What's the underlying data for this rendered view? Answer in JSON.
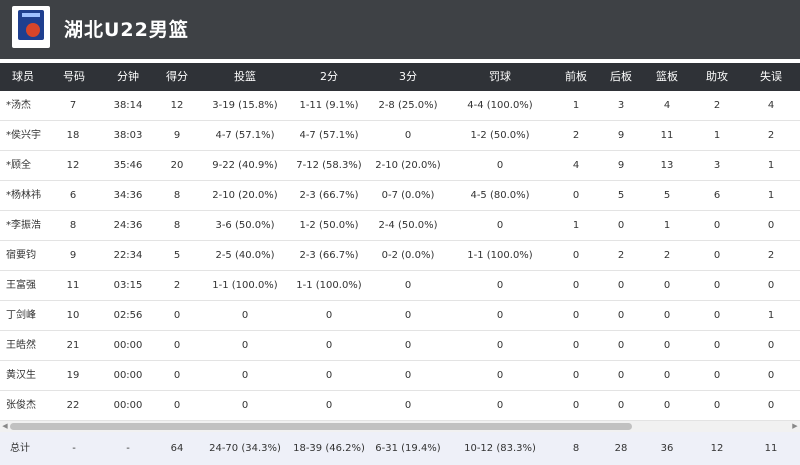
{
  "team": {
    "name": "湖北U22男篮",
    "logo_icon": "team-logo-icon"
  },
  "columns": [
    "球员",
    "号码",
    "分钟",
    "得分",
    "投篮",
    "2分",
    "3分",
    "罚球",
    "前板",
    "后板",
    "篮板",
    "助攻",
    "失误"
  ],
  "players": [
    [
      "*汤杰",
      "7",
      "38:14",
      "12",
      "3-19 (15.8%)",
      "1-11 (9.1%)",
      "2-8 (25.0%)",
      "4-4 (100.0%)",
      "1",
      "3",
      "4",
      "2",
      "4"
    ],
    [
      "*侯兴宇",
      "18",
      "38:03",
      "9",
      "4-7 (57.1%)",
      "4-7 (57.1%)",
      "0",
      "1-2 (50.0%)",
      "2",
      "9",
      "11",
      "1",
      "2"
    ],
    [
      "*顾全",
      "12",
      "35:46",
      "20",
      "9-22 (40.9%)",
      "7-12 (58.3%)",
      "2-10 (20.0%)",
      "0",
      "4",
      "9",
      "13",
      "3",
      "1"
    ],
    [
      "*杨林祎",
      "6",
      "34:36",
      "8",
      "2-10 (20.0%)",
      "2-3 (66.7%)",
      "0-7 (0.0%)",
      "4-5 (80.0%)",
      "0",
      "5",
      "5",
      "6",
      "1"
    ],
    [
      "*李振浩",
      "8",
      "24:36",
      "8",
      "3-6 (50.0%)",
      "1-2 (50.0%)",
      "2-4 (50.0%)",
      "0",
      "1",
      "0",
      "1",
      "0",
      "0"
    ],
    [
      "宿要钧",
      "9",
      "22:34",
      "5",
      "2-5 (40.0%)",
      "2-3 (66.7%)",
      "0-2 (0.0%)",
      "1-1 (100.0%)",
      "0",
      "2",
      "2",
      "0",
      "2"
    ],
    [
      "王富强",
      "11",
      "03:15",
      "2",
      "1-1 (100.0%)",
      "1-1 (100.0%)",
      "0",
      "0",
      "0",
      "0",
      "0",
      "0",
      "0"
    ],
    [
      "丁剑峰",
      "10",
      "02:56",
      "0",
      "0",
      "0",
      "0",
      "0",
      "0",
      "0",
      "0",
      "0",
      "1"
    ],
    [
      "王皓然",
      "21",
      "00:00",
      "0",
      "0",
      "0",
      "0",
      "0",
      "0",
      "0",
      "0",
      "0",
      "0"
    ],
    [
      "黄汉生",
      "19",
      "00:00",
      "0",
      "0",
      "0",
      "0",
      "0",
      "0",
      "0",
      "0",
      "0",
      "0"
    ],
    [
      "张俊杰",
      "22",
      "00:00",
      "0",
      "0",
      "0",
      "0",
      "0",
      "0",
      "0",
      "0",
      "0",
      "0"
    ]
  ],
  "totals": [
    "总计",
    "-",
    "-",
    "64",
    "24-70 (34.3%)",
    "18-39 (46.2%)",
    "6-31 (19.4%)",
    "10-12 (83.3%)",
    "8",
    "28",
    "36",
    "12",
    "11"
  ],
  "colors": {
    "header_bg": "#3e4145",
    "column_header_bg": "#2f3237",
    "total_row_bg": "#eef0f8"
  }
}
